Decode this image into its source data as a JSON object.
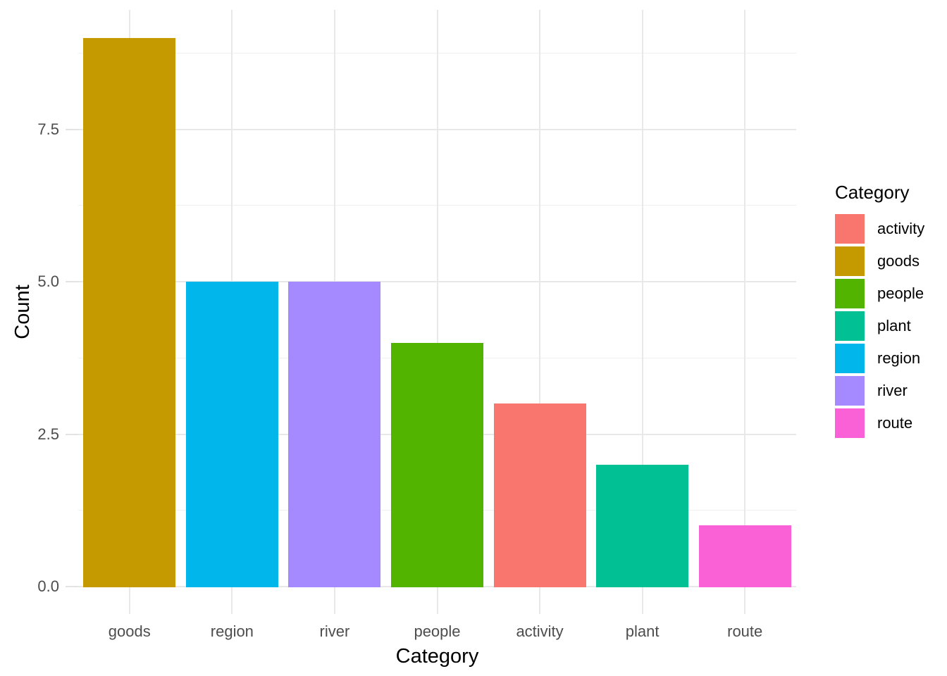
{
  "chart_data": {
    "type": "bar",
    "title": "",
    "xlabel": "Category",
    "ylabel": "Count",
    "categories": [
      "goods",
      "region",
      "river",
      "people",
      "activity",
      "plant",
      "route"
    ],
    "values": [
      9,
      5,
      5,
      4,
      3,
      2,
      1
    ],
    "bar_colors": {
      "goods": "#C49A00",
      "region": "#00B6EB",
      "river": "#A58AFF",
      "people": "#53B400",
      "activity": "#F8766D",
      "plant": "#00C094",
      "route": "#FB61D7"
    },
    "y_tick_values": [
      0,
      2.5,
      5,
      7.5
    ],
    "y_tick_labels": [
      "0.0",
      "2.5",
      "5.0",
      "7.5"
    ],
    "y_minor_values": [
      1.25,
      3.75,
      6.25,
      8.75
    ],
    "ylim": [
      -0.45,
      9.45
    ],
    "grid": {
      "horizontal_major": true,
      "horizontal_minor": true,
      "vertical_major_at_categories": true
    },
    "legend": {
      "title": "Category",
      "position": "right",
      "entries": [
        {
          "label": "activity",
          "color": "#F8766D"
        },
        {
          "label": "goods",
          "color": "#C49A00"
        },
        {
          "label": "people",
          "color": "#53B400"
        },
        {
          "label": "plant",
          "color": "#00C094"
        },
        {
          "label": "region",
          "color": "#00B6EB"
        },
        {
          "label": "river",
          "color": "#A58AFF"
        },
        {
          "label": "route",
          "color": "#FB61D7"
        }
      ]
    }
  },
  "colors": {
    "background": "#FFFFFF",
    "grid_major": "#E8E8E8",
    "grid_minor": "#F0F0F0",
    "tick_mark": "#E3E3E3",
    "axis_text": "#4D4D4D",
    "axis_title": "#000000",
    "legend_text": "#000000"
  }
}
